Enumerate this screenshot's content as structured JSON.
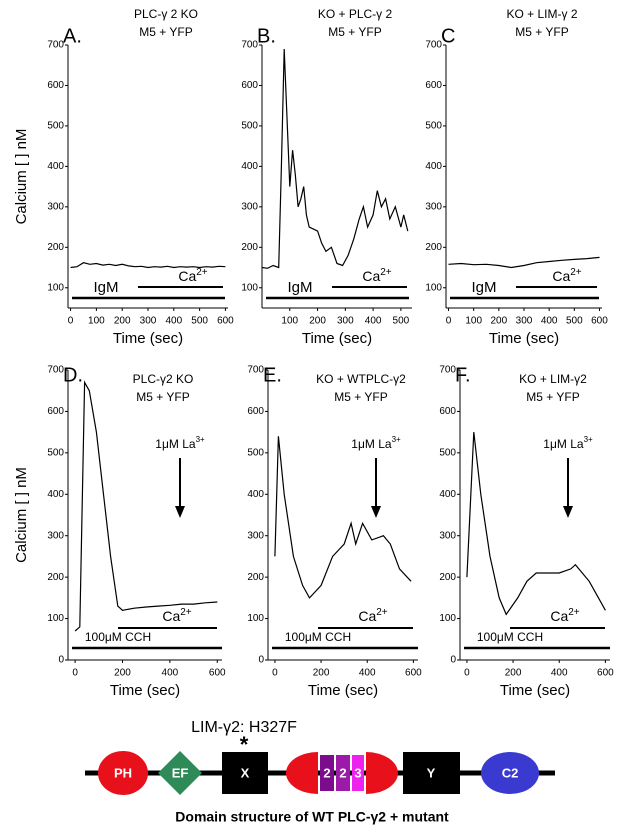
{
  "chart_data": [
    {
      "type": "line",
      "label": "A.",
      "title": "PLC-γ 2 KO",
      "subtitle": "M5 + YFP",
      "ylabel": "Calcium [ ] nM",
      "xlabel": "Time (sec)",
      "xlim": [
        -10,
        610
      ],
      "ylim": [
        50,
        700
      ],
      "xticks": [
        0,
        100,
        200,
        300,
        400,
        500,
        600
      ],
      "yticks": [
        100,
        200,
        300,
        400,
        500,
        600,
        700
      ],
      "color": "#000000",
      "x": [
        0,
        25,
        50,
        75,
        100,
        125,
        150,
        175,
        200,
        225,
        250,
        275,
        300,
        325,
        350,
        375,
        400,
        425,
        450,
        475,
        500,
        525,
        550,
        575,
        600
      ],
      "values": [
        150,
        152,
        162,
        158,
        160,
        156,
        158,
        155,
        158,
        154,
        152,
        153,
        150,
        152,
        151,
        153,
        150,
        152,
        151,
        152,
        150,
        152,
        151,
        153,
        152
      ],
      "annotations": {
        "agonist": "IgM",
        "ion": [
          "Ca",
          "2+"
        ]
      }
    },
    {
      "type": "line",
      "label": "B.",
      "title": "KO + PLC-γ 2",
      "subtitle": "M5 + YFP",
      "xlabel": "Time (sec)",
      "xlim": [
        0,
        540
      ],
      "ylim": [
        50,
        700
      ],
      "xticks": [
        100,
        200,
        300,
        400,
        500
      ],
      "yticks": [
        100,
        200,
        300,
        400,
        500,
        600,
        700
      ],
      "color": "#000000",
      "x": [
        0,
        20,
        40,
        60,
        70,
        80,
        90,
        100,
        110,
        120,
        130,
        140,
        150,
        160,
        170,
        185,
        200,
        215,
        230,
        250,
        270,
        290,
        310,
        330,
        350,
        365,
        380,
        400,
        415,
        430,
        445,
        460,
        480,
        500,
        510,
        525
      ],
      "values": [
        150,
        148,
        155,
        150,
        400,
        690,
        520,
        350,
        440,
        380,
        300,
        320,
        350,
        280,
        250,
        245,
        240,
        210,
        190,
        200,
        160,
        155,
        180,
        220,
        270,
        300,
        250,
        280,
        340,
        300,
        320,
        270,
        300,
        250,
        280,
        240
      ],
      "annotations": {
        "agonist": "IgM",
        "ion": [
          "Ca",
          "2+"
        ]
      }
    },
    {
      "type": "line",
      "label": "C",
      "title": "KO +  LIM-γ 2",
      "subtitle": "M5 + YFP",
      "xlabel": "Time (sec)",
      "xlim": [
        -10,
        610
      ],
      "ylim": [
        50,
        700
      ],
      "xticks": [
        0,
        100,
        200,
        300,
        400,
        500,
        600
      ],
      "yticks": [
        100,
        200,
        300,
        400,
        500,
        600,
        700
      ],
      "color": "#000000",
      "x": [
        0,
        50,
        100,
        150,
        200,
        250,
        300,
        350,
        400,
        450,
        500,
        550,
        600
      ],
      "values": [
        158,
        160,
        157,
        158,
        155,
        150,
        155,
        162,
        165,
        168,
        170,
        172,
        175
      ],
      "annotations": {
        "agonist": "IgM",
        "ion": [
          "Ca",
          "2+"
        ]
      }
    },
    {
      "type": "line",
      "label": "D.",
      "title": "PLC-γ2 KO",
      "subtitle": "M5 + YFP",
      "ylabel": "Calcium [ ] nM",
      "xlabel": "Time (sec)",
      "xlim": [
        -30,
        620
      ],
      "ylim": [
        0,
        700
      ],
      "xticks": [
        0,
        200,
        400,
        600
      ],
      "yticks": [
        0,
        100,
        200,
        300,
        400,
        500,
        600,
        700
      ],
      "color": "#000000",
      "x": [
        0,
        20,
        40,
        60,
        90,
        120,
        150,
        180,
        200,
        250,
        300,
        350,
        400,
        450,
        500,
        550,
        600
      ],
      "values": [
        70,
        80,
        670,
        650,
        550,
        400,
        250,
        130,
        120,
        125,
        128,
        130,
        132,
        135,
        135,
        138,
        140
      ],
      "annotations": {
        "agonist": "100μM CCH",
        "ion": [
          "Ca",
          "2+"
        ],
        "blocker": [
          "1μM La",
          "3+"
        ]
      }
    },
    {
      "type": "line",
      "label": "E.",
      "title": "KO + WTPLC-γ2",
      "subtitle": "M5 + YFP",
      "xlabel": "Time (sec)",
      "xlim": [
        -30,
        620
      ],
      "ylim": [
        0,
        700
      ],
      "xticks": [
        0,
        200,
        400,
        600
      ],
      "yticks": [
        0,
        100,
        200,
        300,
        400,
        500,
        600,
        700
      ],
      "color": "#000000",
      "x": [
        0,
        15,
        40,
        80,
        120,
        150,
        200,
        250,
        300,
        330,
        350,
        380,
        420,
        470,
        500,
        540,
        590
      ],
      "values": [
        250,
        540,
        400,
        250,
        180,
        150,
        180,
        250,
        280,
        330,
        280,
        330,
        290,
        300,
        280,
        220,
        190
      ],
      "annotations": {
        "agonist": "100μM CCH",
        "ion": [
          "Ca",
          "2+"
        ],
        "blocker": [
          "1μM La",
          "3+"
        ]
      }
    },
    {
      "type": "line",
      "label": "F.",
      "title": "KO +  LIM-γ2",
      "subtitle": "M5 + YFP",
      "xlabel": "Time (sec)",
      "xlim": [
        -30,
        620
      ],
      "ylim": [
        0,
        700
      ],
      "xticks": [
        0,
        200,
        400,
        600
      ],
      "yticks": [
        0,
        100,
        200,
        300,
        400,
        500,
        600,
        700
      ],
      "color": "#000000",
      "x": [
        0,
        30,
        60,
        100,
        140,
        170,
        220,
        260,
        300,
        350,
        400,
        450,
        470,
        530,
        570,
        600
      ],
      "values": [
        200,
        550,
        400,
        250,
        150,
        110,
        150,
        190,
        210,
        210,
        210,
        220,
        230,
        190,
        150,
        120
      ],
      "annotations": {
        "agonist": "100μM CCH",
        "ion": [
          "Ca",
          "2+"
        ],
        "blocker": [
          "1μM La",
          "3+"
        ]
      }
    }
  ],
  "diagram": {
    "mutant_label": "LIM-γ2: H327F",
    "mutation_marker": "*",
    "domains": [
      "PH",
      "EF",
      "X",
      "2",
      "2",
      "3",
      "Y",
      "C2"
    ],
    "caption": "Domain structure of WT PLC-γ2 + mutant"
  }
}
